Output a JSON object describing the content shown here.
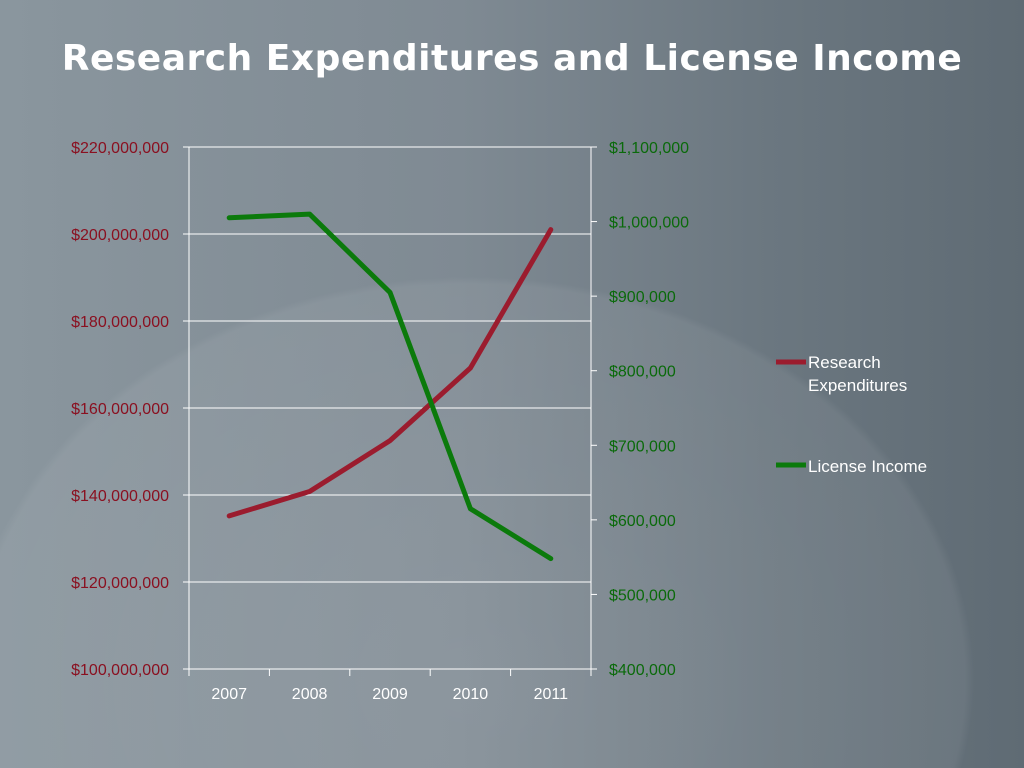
{
  "slide": {
    "title": "Research Expenditures and License Income"
  },
  "chart_data": {
    "type": "line",
    "title": "Research Expenditures and License Income",
    "categories": [
      "2007",
      "2008",
      "2009",
      "2010",
      "2011"
    ],
    "left_axis": {
      "ylim": [
        100000000,
        220000000
      ],
      "ticks": [
        100000000,
        120000000,
        140000000,
        160000000,
        180000000,
        200000000,
        220000000
      ],
      "tick_labels": [
        "$100,000,000",
        "$120,000,000",
        "$140,000,000",
        "$160,000,000",
        "$180,000,000",
        "$200,000,000",
        "$220,000,000"
      ],
      "color": "#8a1020"
    },
    "right_axis": {
      "ylim": [
        400000,
        1100000
      ],
      "ticks": [
        400000,
        500000,
        600000,
        700000,
        800000,
        900000,
        1000000,
        1100000
      ],
      "tick_labels": [
        "$400,000",
        "$500,000",
        "$600,000",
        "$700,000",
        "$800,000",
        "$900,000",
        "$1,000,000",
        "$1,100,000"
      ],
      "color": "#0a6a0a"
    },
    "grid": true,
    "legend_position": "right",
    "series": [
      {
        "name": "Research Expenditures",
        "axis": "left",
        "color": "#9b1c2e",
        "values": [
          135200000,
          140800000,
          152500000,
          169200000,
          201000000
        ]
      },
      {
        "name": "License Income",
        "axis": "right",
        "color": "#0b7a0b",
        "values": [
          1005000,
          1010000,
          905000,
          615000,
          548000
        ]
      }
    ]
  },
  "legend": {
    "items": [
      {
        "line1": "Research",
        "line2": "Expenditures"
      },
      {
        "line1": "License Income",
        "line2": ""
      }
    ]
  }
}
